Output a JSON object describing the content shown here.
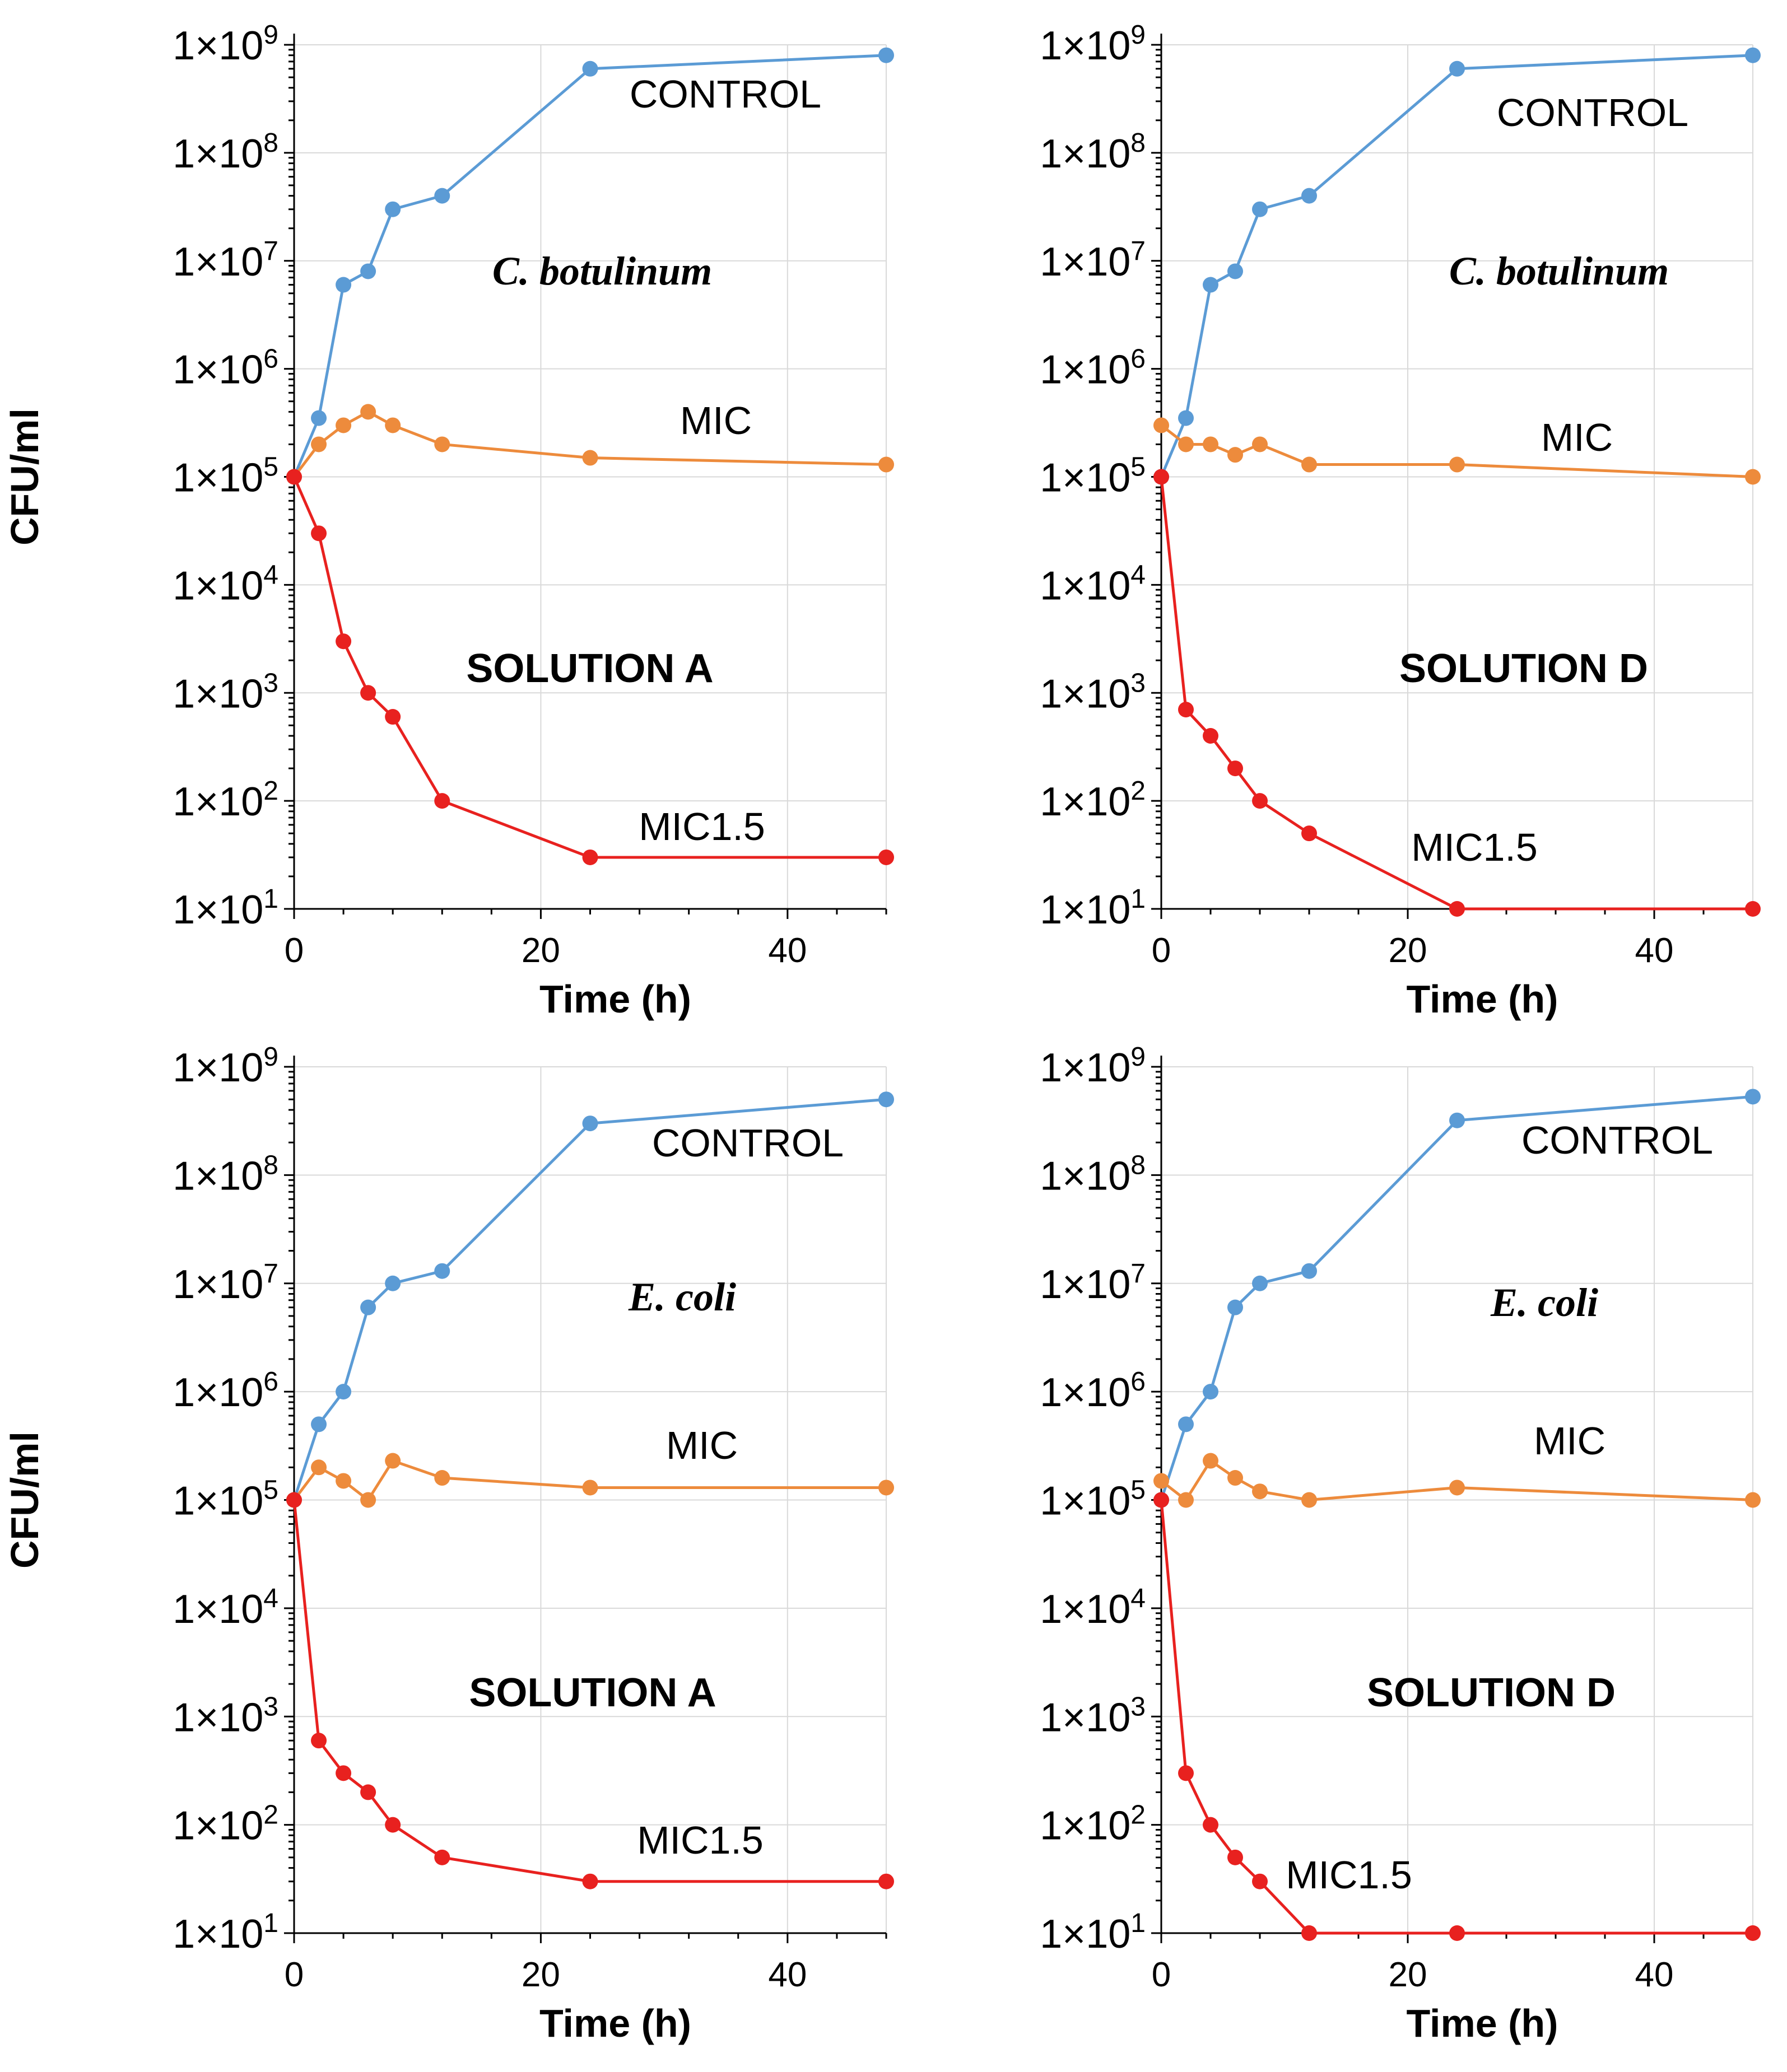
{
  "chart_data": [
    {
      "type": "line",
      "yscale": "log",
      "xlabel": "Time (h)",
      "ylabel": "CFU/ml",
      "xlim": [
        0,
        48
      ],
      "xticks": [
        "0",
        "20",
        "40"
      ],
      "ylim": [
        10,
        1000000000
      ],
      "yticks": [
        {
          "base": "1×10",
          "exp": "1"
        },
        {
          "base": "1×10",
          "exp": "2"
        },
        {
          "base": "1×10",
          "exp": "3"
        },
        {
          "base": "1×10",
          "exp": "4"
        },
        {
          "base": "1×10",
          "exp": "5"
        },
        {
          "base": "1×10",
          "exp": "6"
        },
        {
          "base": "1×10",
          "exp": "7"
        },
        {
          "base": "1×10",
          "exp": "8"
        },
        {
          "base": "1×10",
          "exp": "9"
        }
      ],
      "grid": true,
      "organism": "C. botulinum",
      "solution": "SOLUTION A",
      "x": [
        0,
        2,
        4,
        6,
        8,
        12,
        24,
        48
      ],
      "series": [
        {
          "name": "CONTROL",
          "color": "#5b9bd5",
          "values": [
            100000,
            350000,
            6000000,
            8000000,
            30000000,
            40000000,
            600000000,
            800000000
          ]
        },
        {
          "name": "MIC",
          "color": "#ed8b3c",
          "values": [
            100000,
            200000,
            300000,
            400000,
            300000,
            200000,
            150000,
            130000
          ]
        },
        {
          "name": "MIC1.5",
          "color": "#e8211f",
          "values": [
            100000,
            30000,
            3000,
            1000,
            600,
            100,
            30,
            30
          ]
        }
      ]
    },
    {
      "type": "line",
      "yscale": "log",
      "xlabel": "Time (h)",
      "ylabel": "",
      "xlim": [
        0,
        48
      ],
      "xticks": [
        "0",
        "20",
        "40"
      ],
      "ylim": [
        10,
        1000000000
      ],
      "yticks": [
        {
          "base": "1×10",
          "exp": "1"
        },
        {
          "base": "1×10",
          "exp": "2"
        },
        {
          "base": "1×10",
          "exp": "3"
        },
        {
          "base": "1×10",
          "exp": "4"
        },
        {
          "base": "1×10",
          "exp": "5"
        },
        {
          "base": "1×10",
          "exp": "6"
        },
        {
          "base": "1×10",
          "exp": "7"
        },
        {
          "base": "1×10",
          "exp": "8"
        },
        {
          "base": "1×10",
          "exp": "9"
        }
      ],
      "grid": true,
      "organism": "C. botulinum",
      "solution": "SOLUTION D",
      "x": [
        0,
        2,
        4,
        6,
        8,
        12,
        24,
        48
      ],
      "series": [
        {
          "name": "CONTROL",
          "color": "#5b9bd5",
          "values": [
            100000,
            350000,
            6000000,
            8000000,
            30000000,
            40000000,
            600000000,
            800000000
          ]
        },
        {
          "name": "MIC",
          "color": "#ed8b3c",
          "values": [
            300000,
            200000,
            200000,
            160000,
            200000,
            130000,
            130000,
            100000
          ]
        },
        {
          "name": "MIC1.5",
          "color": "#e8211f",
          "values": [
            100000,
            700,
            400,
            200,
            100,
            50,
            10,
            10
          ]
        }
      ]
    },
    {
      "type": "line",
      "yscale": "log",
      "xlabel": "Time (h)",
      "ylabel": "CFU/ml",
      "xlim": [
        0,
        48
      ],
      "xticks": [
        "0",
        "20",
        "40"
      ],
      "ylim": [
        10,
        1000000000
      ],
      "yticks": [
        {
          "base": "1×10",
          "exp": "1"
        },
        {
          "base": "1×10",
          "exp": "2"
        },
        {
          "base": "1×10",
          "exp": "3"
        },
        {
          "base": "1×10",
          "exp": "4"
        },
        {
          "base": "1×10",
          "exp": "5"
        },
        {
          "base": "1×10",
          "exp": "6"
        },
        {
          "base": "1×10",
          "exp": "7"
        },
        {
          "base": "1×10",
          "exp": "8"
        },
        {
          "base": "1×10",
          "exp": "9"
        }
      ],
      "grid": true,
      "organism": "E. coli",
      "solution": "SOLUTION A",
      "x": [
        0,
        2,
        4,
        6,
        8,
        12,
        24,
        48
      ],
      "series": [
        {
          "name": "CONTROL",
          "color": "#5b9bd5",
          "values": [
            100000,
            500000,
            1000000,
            6000000,
            10000000,
            13000000,
            300000000,
            500000000
          ]
        },
        {
          "name": "MIC",
          "color": "#ed8b3c",
          "values": [
            100000,
            200000,
            150000,
            100000,
            230000,
            160000,
            130000,
            130000
          ]
        },
        {
          "name": "MIC1.5",
          "color": "#e8211f",
          "values": [
            100000,
            600,
            300,
            200,
            100,
            50,
            30,
            30
          ]
        }
      ]
    },
    {
      "type": "line",
      "yscale": "log",
      "xlabel": "Time (h)",
      "ylabel": "",
      "xlim": [
        0,
        48
      ],
      "xticks": [
        "0",
        "20",
        "40"
      ],
      "ylim": [
        10,
        1000000000
      ],
      "yticks": [
        {
          "base": "1×10",
          "exp": "1"
        },
        {
          "base": "1×10",
          "exp": "2"
        },
        {
          "base": "1×10",
          "exp": "3"
        },
        {
          "base": "1×10",
          "exp": "4"
        },
        {
          "base": "1×10",
          "exp": "5"
        },
        {
          "base": "1×10",
          "exp": "6"
        },
        {
          "base": "1×10",
          "exp": "7"
        },
        {
          "base": "1×10",
          "exp": "8"
        },
        {
          "base": "1×10",
          "exp": "9"
        }
      ],
      "grid": true,
      "organism": "E. coli",
      "solution": "SOLUTION D",
      "x": [
        0,
        2,
        4,
        6,
        8,
        12,
        24,
        48
      ],
      "series": [
        {
          "name": "CONTROL",
          "color": "#5b9bd5",
          "values": [
            100000,
            500000,
            1000000,
            6000000,
            10000000,
            13000000,
            320000000,
            530000000
          ]
        },
        {
          "name": "MIC",
          "color": "#ed8b3c",
          "values": [
            150000,
            100000,
            230000,
            160000,
            120000,
            100000,
            130000,
            100000
          ]
        },
        {
          "name": "MIC1.5",
          "color": "#e8211f",
          "values": [
            100000,
            300,
            100,
            50,
            30,
            10,
            10,
            10
          ]
        }
      ]
    }
  ]
}
